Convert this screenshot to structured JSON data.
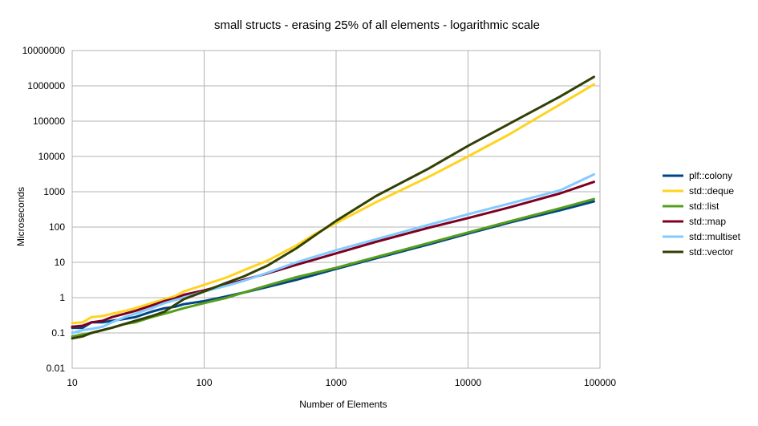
{
  "chart_data": {
    "type": "line",
    "title": "small structs - erasing 25% of all elements - logarithmic scale",
    "xlabel": "Number of  Elements",
    "ylabel": "Microseconds",
    "x_scale": "log",
    "y_scale": "log",
    "xlim": [
      10,
      100000
    ],
    "ylim": [
      0.01,
      10000000
    ],
    "x_ticks": [
      10,
      100,
      1000,
      10000,
      100000
    ],
    "x_tick_labels": [
      "10",
      "100",
      "1000",
      "10000",
      "100000"
    ],
    "y_ticks": [
      0.01,
      0.1,
      1,
      10,
      100,
      1000,
      10000,
      100000,
      1000000,
      10000000
    ],
    "y_tick_labels": [
      "0.01",
      "0.1",
      "1",
      "10",
      "100",
      "1000",
      "10000",
      "100000",
      "1000000",
      "10000000"
    ],
    "grid": true,
    "legend_position": "right",
    "series": [
      {
        "name": "plf::colony",
        "color": "#004586",
        "points": [
          [
            10,
            0.14
          ],
          [
            12,
            0.14
          ],
          [
            14,
            0.2
          ],
          [
            17,
            0.2
          ],
          [
            20,
            0.22
          ],
          [
            25,
            0.25
          ],
          [
            30,
            0.28
          ],
          [
            40,
            0.4
          ],
          [
            50,
            0.5
          ],
          [
            60,
            0.55
          ],
          [
            70,
            0.65
          ],
          [
            100,
            0.8
          ],
          [
            150,
            1.1
          ],
          [
            200,
            1.4
          ],
          [
            300,
            2
          ],
          [
            500,
            3.2
          ],
          [
            1000,
            6.5
          ],
          [
            2000,
            13
          ],
          [
            5000,
            32
          ],
          [
            10000,
            65
          ],
          [
            20000,
            130
          ],
          [
            50000,
            300
          ],
          [
            90000,
            530
          ]
        ]
      },
      {
        "name": "std::deque",
        "color": "#ffd320",
        "points": [
          [
            10,
            0.19
          ],
          [
            12,
            0.2
          ],
          [
            14,
            0.28
          ],
          [
            17,
            0.3
          ],
          [
            20,
            0.35
          ],
          [
            25,
            0.42
          ],
          [
            30,
            0.5
          ],
          [
            40,
            0.7
          ],
          [
            50,
            0.9
          ],
          [
            60,
            1.1
          ],
          [
            70,
            1.5
          ],
          [
            100,
            2.3
          ],
          [
            150,
            3.8
          ],
          [
            200,
            6
          ],
          [
            300,
            11
          ],
          [
            500,
            30
          ],
          [
            700,
            65
          ],
          [
            1000,
            130
          ],
          [
            2000,
            500
          ],
          [
            5000,
            2600
          ],
          [
            10000,
            10000
          ],
          [
            20000,
            40000
          ],
          [
            50000,
            300000
          ],
          [
            90000,
            1100000
          ]
        ]
      },
      {
        "name": "std::list",
        "color": "#579d1c",
        "points": [
          [
            10,
            0.08
          ],
          [
            12,
            0.09
          ],
          [
            14,
            0.1
          ],
          [
            17,
            0.12
          ],
          [
            20,
            0.14
          ],
          [
            25,
            0.18
          ],
          [
            30,
            0.2
          ],
          [
            40,
            0.28
          ],
          [
            50,
            0.35
          ],
          [
            70,
            0.5
          ],
          [
            100,
            0.7
          ],
          [
            150,
            1.0
          ],
          [
            200,
            1.4
          ],
          [
            300,
            2.2
          ],
          [
            500,
            3.8
          ],
          [
            1000,
            7
          ],
          [
            2000,
            14
          ],
          [
            5000,
            35
          ],
          [
            10000,
            70
          ],
          [
            20000,
            140
          ],
          [
            50000,
            340
          ],
          [
            90000,
            620
          ]
        ]
      },
      {
        "name": "std::map",
        "color": "#7e0021",
        "points": [
          [
            10,
            0.15
          ],
          [
            12,
            0.16
          ],
          [
            14,
            0.2
          ],
          [
            17,
            0.22
          ],
          [
            20,
            0.28
          ],
          [
            25,
            0.35
          ],
          [
            30,
            0.42
          ],
          [
            40,
            0.6
          ],
          [
            50,
            0.8
          ],
          [
            60,
            0.95
          ],
          [
            70,
            1.2
          ],
          [
            100,
            1.6
          ],
          [
            150,
            2.4
          ],
          [
            200,
            3.2
          ],
          [
            300,
            4.8
          ],
          [
            500,
            8.5
          ],
          [
            1000,
            18
          ],
          [
            2000,
            38
          ],
          [
            5000,
            95
          ],
          [
            10000,
            180
          ],
          [
            20000,
            350
          ],
          [
            50000,
            900
          ],
          [
            90000,
            1900
          ]
        ]
      },
      {
        "name": "std::multiset",
        "color": "#83caff",
        "points": [
          [
            10,
            0.1
          ],
          [
            12,
            0.12
          ],
          [
            14,
            0.13
          ],
          [
            17,
            0.15
          ],
          [
            20,
            0.2
          ],
          [
            25,
            0.28
          ],
          [
            30,
            0.35
          ],
          [
            40,
            0.5
          ],
          [
            50,
            0.7
          ],
          [
            70,
            1.0
          ],
          [
            100,
            1.5
          ],
          [
            150,
            2.2
          ],
          [
            200,
            3.0
          ],
          [
            300,
            5
          ],
          [
            500,
            10
          ],
          [
            1000,
            22
          ],
          [
            2000,
            45
          ],
          [
            5000,
            115
          ],
          [
            10000,
            230
          ],
          [
            20000,
            450
          ],
          [
            50000,
            1100
          ],
          [
            90000,
            3100
          ]
        ]
      },
      {
        "name": "std::vector",
        "color": "#314004",
        "points": [
          [
            10,
            0.07
          ],
          [
            12,
            0.08
          ],
          [
            14,
            0.1
          ],
          [
            17,
            0.12
          ],
          [
            20,
            0.14
          ],
          [
            25,
            0.18
          ],
          [
            30,
            0.22
          ],
          [
            40,
            0.3
          ],
          [
            50,
            0.4
          ],
          [
            70,
            0.9
          ],
          [
            100,
            1.5
          ],
          [
            150,
            2.7
          ],
          [
            200,
            4
          ],
          [
            300,
            8
          ],
          [
            500,
            25
          ],
          [
            700,
            60
          ],
          [
            1000,
            150
          ],
          [
            2000,
            750
          ],
          [
            5000,
            4500
          ],
          [
            10000,
            20000
          ],
          [
            20000,
            80000
          ],
          [
            50000,
            500000
          ],
          [
            90000,
            1800000
          ]
        ]
      }
    ]
  }
}
